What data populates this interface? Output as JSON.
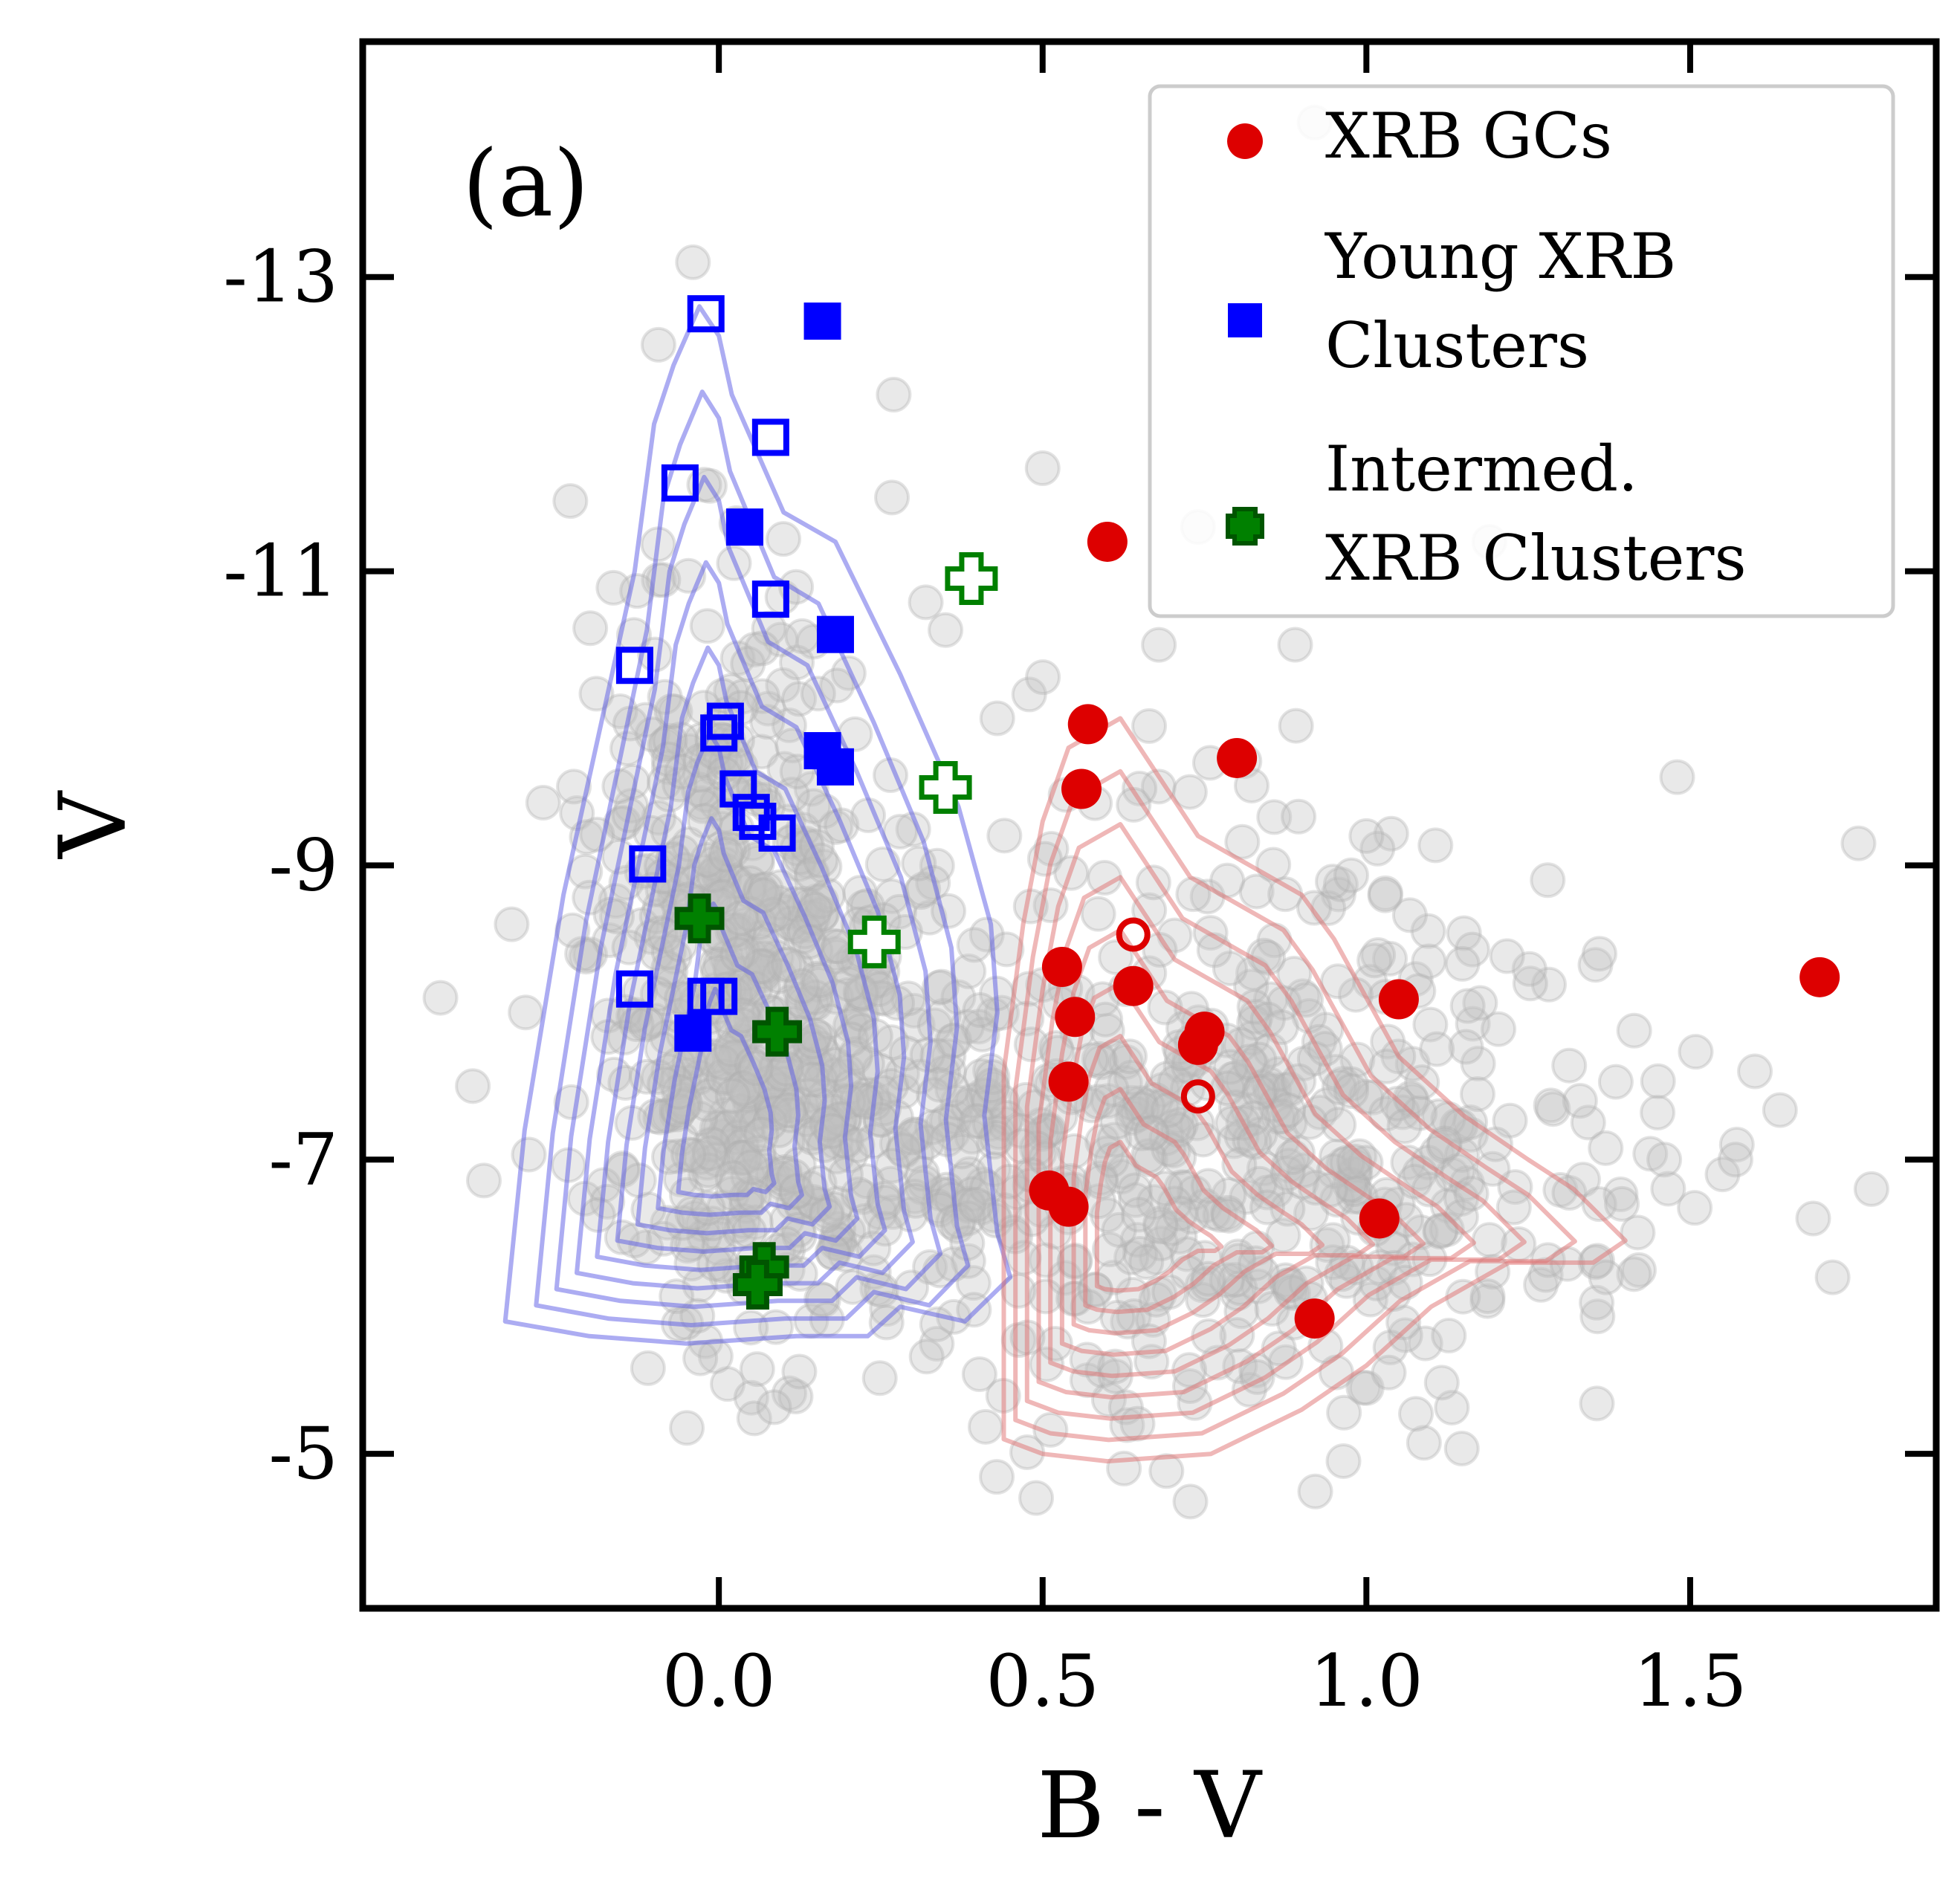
{
  "chart_data": {
    "type": "scatter",
    "panel_label": "(a)",
    "xlabel": "B - V",
    "ylabel": "V",
    "xlim": [
      -0.55,
      1.88
    ],
    "ylim": [
      -14.6,
      -3.95
    ],
    "y_inverted": true,
    "xticks": [
      0.0,
      0.5,
      1.0,
      1.5
    ],
    "xtick_labels": [
      "0.0",
      "0.5",
      "1.0",
      "1.5"
    ],
    "yticks": [
      -13,
      -11,
      -9,
      -7,
      -5
    ],
    "ytick_labels": [
      "-13",
      "-11",
      "-9",
      "-7",
      "-5"
    ],
    "legend_position": "top-right",
    "colors": {
      "xrb_gc": "#dd0000",
      "young": "#0000ff",
      "intermed": "#008000",
      "background": "#c0c0c0",
      "blue_contour": "#5a5ae6",
      "red_contour": "#e07070"
    },
    "series": [
      {
        "name": "XRB GCs",
        "legend_label": "XRB GCs",
        "marker": "circle",
        "color": "#dd0000",
        "points": [
          {
            "x": 0.6,
            "y": -11.2,
            "filled": true
          },
          {
            "x": 0.57,
            "y": -9.96,
            "filled": true
          },
          {
            "x": 0.56,
            "y": -9.52,
            "filled": true
          },
          {
            "x": 0.8,
            "y": -9.73,
            "filled": true
          },
          {
            "x": 0.53,
            "y": -8.31,
            "filled": true
          },
          {
            "x": 0.55,
            "y": -7.97,
            "filled": true
          },
          {
            "x": 0.64,
            "y": -8.18,
            "filled": true
          },
          {
            "x": 1.05,
            "y": -8.09,
            "filled": true
          },
          {
            "x": 1.7,
            "y": -8.24,
            "filled": true
          },
          {
            "x": 0.75,
            "y": -7.87,
            "filled": true
          },
          {
            "x": 0.74,
            "y": -7.78,
            "filled": true
          },
          {
            "x": 0.54,
            "y": -7.53,
            "filled": true
          },
          {
            "x": 0.51,
            "y": -6.79,
            "filled": true
          },
          {
            "x": 0.54,
            "y": -6.68,
            "filled": true
          },
          {
            "x": 1.02,
            "y": -6.6,
            "filled": true
          },
          {
            "x": 0.92,
            "y": -5.92,
            "filled": true
          },
          {
            "x": 0.64,
            "y": -8.53,
            "filled": false
          },
          {
            "x": 0.74,
            "y": -7.43,
            "filled": false
          }
        ]
      },
      {
        "name": "Young XRB Clusters",
        "legend_label": [
          "Young XRB",
          "Clusters"
        ],
        "marker": "square",
        "color": "#0000ff",
        "points": [
          {
            "x": 0.16,
            "y": -12.7,
            "filled": true
          },
          {
            "x": 0.04,
            "y": -11.3,
            "filled": true
          },
          {
            "x": 0.18,
            "y": -10.57,
            "filled": true
          },
          {
            "x": 0.16,
            "y": -9.78,
            "filled": true
          },
          {
            "x": 0.18,
            "y": -9.67,
            "filled": true
          },
          {
            "x": -0.04,
            "y": -7.86,
            "filled": true
          },
          {
            "x": -0.02,
            "y": -12.75,
            "filled": false
          },
          {
            "x": 0.08,
            "y": -11.91,
            "filled": false
          },
          {
            "x": -0.06,
            "y": -11.6,
            "filled": false
          },
          {
            "x": 0.08,
            "y": -10.81,
            "filled": false
          },
          {
            "x": -0.13,
            "y": -10.36,
            "filled": false
          },
          {
            "x": 0.01,
            "y": -9.98,
            "filled": false
          },
          {
            "x": 0.0,
            "y": -9.9,
            "filled": false
          },
          {
            "x": 0.03,
            "y": -9.52,
            "filled": false
          },
          {
            "x": 0.05,
            "y": -9.36,
            "filled": false
          },
          {
            "x": 0.06,
            "y": -9.3,
            "filled": false
          },
          {
            "x": 0.09,
            "y": -9.22,
            "filled": false
          },
          {
            "x": -0.11,
            "y": -9.01,
            "filled": false
          },
          {
            "x": -0.13,
            "y": -8.16,
            "filled": false
          },
          {
            "x": -0.02,
            "y": -8.11,
            "filled": false
          },
          {
            "x": 0.0,
            "y": -8.11,
            "filled": false
          }
        ]
      },
      {
        "name": "Intermed. XRB Clusters",
        "legend_label": [
          "Intermed.",
          "XRB Clusters"
        ],
        "marker": "plus",
        "color": "#008000",
        "points": [
          {
            "x": -0.03,
            "y": -8.64,
            "filled": true
          },
          {
            "x": 0.09,
            "y": -7.87,
            "filled": true
          },
          {
            "x": 0.07,
            "y": -6.27,
            "filled": true
          },
          {
            "x": 0.06,
            "y": -6.15,
            "filled": true
          },
          {
            "x": 0.39,
            "y": -10.95,
            "filled": false
          },
          {
            "x": 0.35,
            "y": -9.53,
            "filled": false
          },
          {
            "x": 0.24,
            "y": -8.48,
            "filled": false
          }
        ]
      }
    ],
    "background_note": "grey translucent circles: all clusters; blue contours: young cluster density; red contours: old cluster density"
  }
}
